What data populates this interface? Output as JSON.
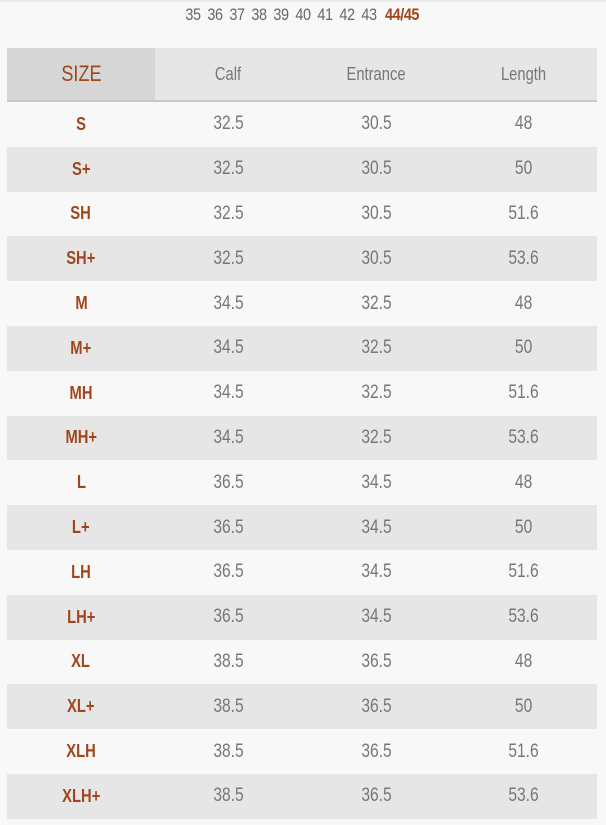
{
  "size_selector": {
    "options": [
      "35",
      "36",
      "37",
      "38",
      "39",
      "40",
      "41",
      "42",
      "43",
      "44/45"
    ],
    "active": "44/45"
  },
  "table": {
    "headers": [
      "SIZE",
      "Calf",
      "Entrance",
      "Length"
    ],
    "rows": [
      [
        "S",
        "32.5",
        "30.5",
        "48"
      ],
      [
        "S+",
        "32.5",
        "30.5",
        "50"
      ],
      [
        "SH",
        "32.5",
        "30.5",
        "51.6"
      ],
      [
        "SH+",
        "32.5",
        "30.5",
        "53.6"
      ],
      [
        "M",
        "34.5",
        "32.5",
        "48"
      ],
      [
        "M+",
        "34.5",
        "32.5",
        "50"
      ],
      [
        "MH",
        "34.5",
        "32.5",
        "51.6"
      ],
      [
        "MH+",
        "34.5",
        "32.5",
        "53.6"
      ],
      [
        "L",
        "36.5",
        "34.5",
        "48"
      ],
      [
        "L+",
        "36.5",
        "34.5",
        "50"
      ],
      [
        "LH",
        "36.5",
        "34.5",
        "51.6"
      ],
      [
        "LH+",
        "36.5",
        "34.5",
        "53.6"
      ],
      [
        "XL",
        "38.5",
        "36.5",
        "48"
      ],
      [
        "XL+",
        "38.5",
        "36.5",
        "50"
      ],
      [
        "XLH",
        "38.5",
        "36.5",
        "51.6"
      ],
      [
        "XLH+",
        "38.5",
        "36.5",
        "53.6"
      ]
    ]
  },
  "colors": {
    "accent": "#a0461c",
    "text": "#777777",
    "stripe": "#e6e6e6",
    "header_size_bg": "#d6d6d6"
  }
}
